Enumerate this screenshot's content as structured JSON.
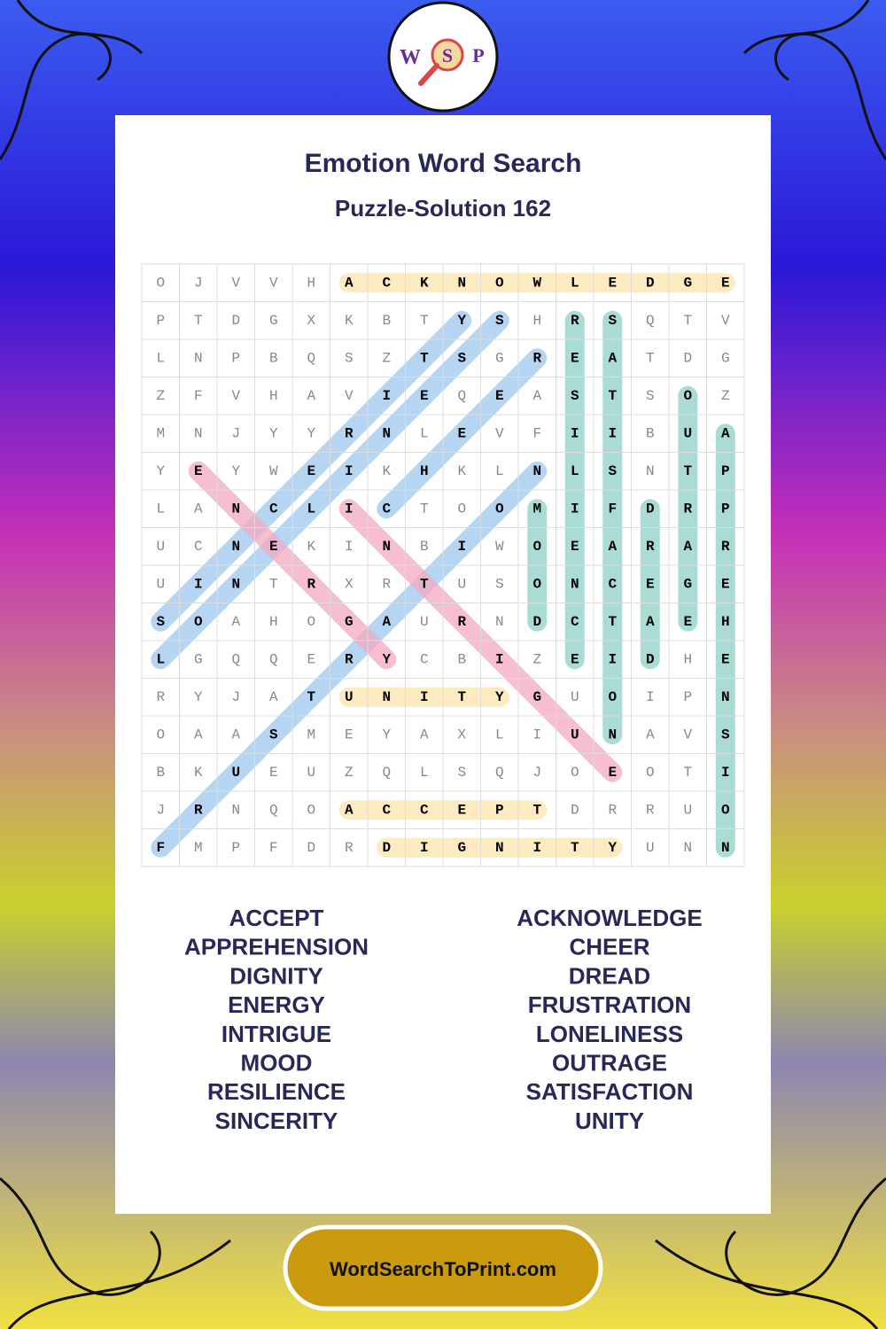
{
  "header": {
    "logo": [
      "W",
      "S",
      "P"
    ],
    "title": "Emotion Word Search",
    "subtitle": "Puzzle-Solution 162"
  },
  "grid": {
    "rows": [
      [
        "O",
        "J",
        "V",
        "V",
        "H",
        "A",
        "C",
        "K",
        "N",
        "O",
        "W",
        "L",
        "E",
        "D",
        "G",
        "E"
      ],
      [
        "P",
        "T",
        "D",
        "G",
        "X",
        "K",
        "B",
        "T",
        "Y",
        "S",
        "H",
        "R",
        "S",
        "Q",
        "T",
        "V"
      ],
      [
        "L",
        "N",
        "P",
        "B",
        "Q",
        "S",
        "Z",
        "T",
        "S",
        "G",
        "R",
        "E",
        "A",
        "T",
        "D",
        "G"
      ],
      [
        "Z",
        "F",
        "V",
        "H",
        "A",
        "V",
        "I",
        "E",
        "Q",
        "E",
        "A",
        "S",
        "T",
        "S",
        "O",
        "Z"
      ],
      [
        "M",
        "N",
        "J",
        "Y",
        "Y",
        "R",
        "N",
        "L",
        "E",
        "V",
        "F",
        "I",
        "I",
        "B",
        "U",
        "A"
      ],
      [
        "Y",
        "E",
        "Y",
        "W",
        "E",
        "I",
        "K",
        "H",
        "K",
        "L",
        "N",
        "L",
        "S",
        "N",
        "T",
        "P"
      ],
      [
        "L",
        "A",
        "N",
        "C",
        "L",
        "I",
        "C",
        "T",
        "O",
        "O",
        "M",
        "I",
        "F",
        "D",
        "R",
        "P"
      ],
      [
        "U",
        "C",
        "N",
        "E",
        "K",
        "I",
        "N",
        "B",
        "I",
        "W",
        "O",
        "E",
        "A",
        "R",
        "A",
        "R"
      ],
      [
        "U",
        "I",
        "N",
        "T",
        "R",
        "X",
        "R",
        "T",
        "U",
        "S",
        "O",
        "N",
        "C",
        "E",
        "G",
        "E"
      ],
      [
        "S",
        "O",
        "A",
        "H",
        "O",
        "G",
        "A",
        "U",
        "R",
        "N",
        "D",
        "C",
        "T",
        "A",
        "E",
        "H"
      ],
      [
        "L",
        "G",
        "Q",
        "Q",
        "E",
        "R",
        "Y",
        "C",
        "B",
        "I",
        "Z",
        "E",
        "I",
        "D",
        "H",
        "E"
      ],
      [
        "R",
        "Y",
        "J",
        "A",
        "T",
        "U",
        "N",
        "I",
        "T",
        "Y",
        "G",
        "U",
        "O",
        "I",
        "P",
        "N"
      ],
      [
        "O",
        "A",
        "A",
        "S",
        "M",
        "E",
        "Y",
        "A",
        "X",
        "L",
        "I",
        "U",
        "N",
        "A",
        "V",
        "S"
      ],
      [
        "B",
        "K",
        "U",
        "E",
        "U",
        "Z",
        "Q",
        "L",
        "S",
        "Q",
        "J",
        "O",
        "E",
        "O",
        "T",
        "I"
      ],
      [
        "J",
        "R",
        "N",
        "Q",
        "O",
        "A",
        "C",
        "C",
        "E",
        "P",
        "T",
        "D",
        "R",
        "R",
        "U",
        "O"
      ],
      [
        "F",
        "M",
        "P",
        "F",
        "D",
        "R",
        "D",
        "I",
        "G",
        "N",
        "I",
        "T",
        "Y",
        "U",
        "N",
        "N"
      ]
    ]
  },
  "words": {
    "left": [
      "ACCEPT",
      "APPREHENSION",
      "DIGNITY",
      "ENERGY",
      "INTRIGUE",
      "MOOD",
      "RESILIENCE",
      "SINCERITY"
    ],
    "right": [
      "ACKNOWLEDGE",
      "CHEER",
      "DREAD",
      "FRUSTRATION",
      "LONELINESS",
      "OUTRAGE",
      "SATISFACTION",
      "UNITY"
    ]
  },
  "footer": {
    "site": "WordSearchToPrint.com"
  }
}
